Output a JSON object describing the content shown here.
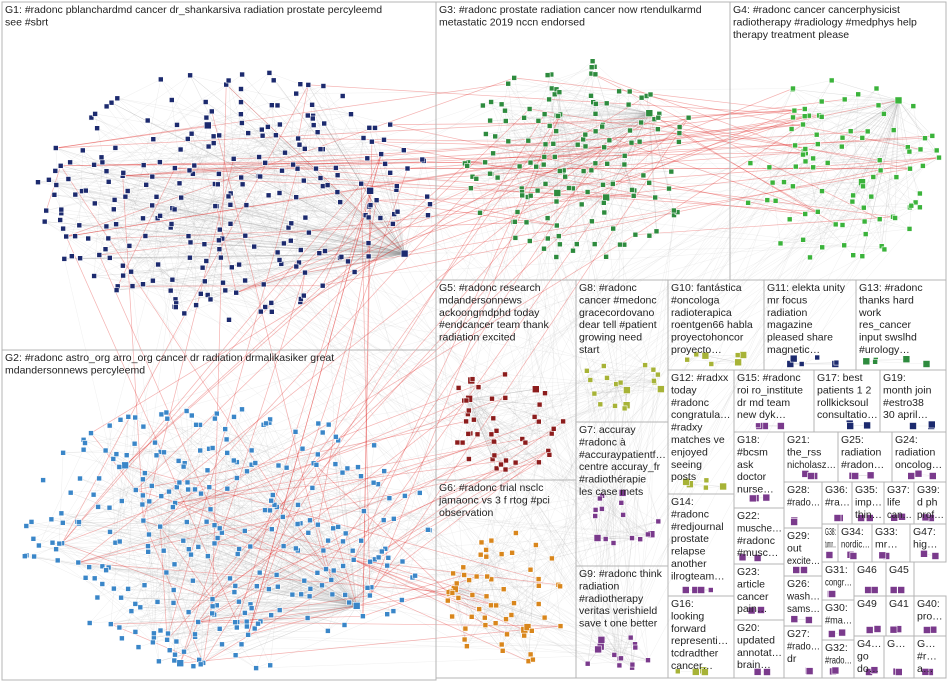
{
  "graph": {
    "colors": {
      "navy": "#1c2a6e",
      "green": "#2e8b3e",
      "lightgreen": "#3bb33b",
      "blue": "#3a86c8",
      "darkred": "#8c1c1c",
      "orange": "#d9861c",
      "olive": "#a7b337",
      "purple": "#7a3a8c",
      "edge": "#999999",
      "edge_red": "#e0201e"
    },
    "groups": [
      {
        "id": "G1",
        "label_lines": [
          "G1: #radonc pblanchardmd cancer dr_shankarsiva radiation prostate percyleemd",
          "see #sbrt"
        ],
        "color": "navy"
      },
      {
        "id": "G2",
        "label_lines": [
          "G2: #radonc astro_org arro_org cancer dr radiation drmalikasiker great",
          "mdandersonnews percyleemd"
        ],
        "color": "blue"
      },
      {
        "id": "G3",
        "label_lines": [
          "G3: #radonc prostate radiation cancer now rtendulkarmd",
          "metastatic 2019 nccn endorsed"
        ],
        "color": "green"
      },
      {
        "id": "G4",
        "label_lines": [
          "G4: #radonc cancer cancerphysicist",
          "radiotherapy #radiology #medphys help",
          "therapy treatment please"
        ],
        "color": "lightgreen"
      },
      {
        "id": "G5",
        "label_lines": [
          "G5: #radonc research",
          "mdandersonnews",
          "ackoongmdphd today",
          "#endcancer team thank",
          "radiation excited"
        ],
        "color": "darkred"
      },
      {
        "id": "G6",
        "label_lines": [
          "G6: #radonc trial nsclc",
          "jamaonc vs 3 f rtog #pci",
          "observation"
        ],
        "color": "orange"
      },
      {
        "id": "G7",
        "label_lines": [
          "G7: accuray",
          "#radonc à",
          "#accuraypatientf…",
          "centre accuray_fr",
          "#radiothérapie",
          "les case mets"
        ],
        "color": "purple"
      },
      {
        "id": "G8",
        "label_lines": [
          "G8: #radonc",
          "cancer #medonc",
          "gracecordovano",
          "dear tell #patient",
          "growing need",
          "start"
        ],
        "color": "olive"
      },
      {
        "id": "G9",
        "label_lines": [
          "G9: #radonc think",
          "radiation",
          "#radiotherapy",
          "veritas verishield",
          "save t one better"
        ],
        "color": "purple"
      },
      {
        "id": "G10",
        "label_lines": [
          "G10: fantástica",
          "#oncologa",
          "radioterapica",
          "roentgen66 habla",
          "proyectohoncor",
          "proyecto…"
        ],
        "color": "olive"
      },
      {
        "id": "G11",
        "label_lines": [
          "G11: elekta unity",
          "mr focus",
          "radiation",
          "magazine",
          "pleased share",
          "magnetic…"
        ],
        "color": "navy"
      },
      {
        "id": "G12",
        "label_lines": [
          "G12: #radxx",
          "today",
          "#radonc",
          "congratula…",
          "#radxy",
          "matches ve",
          "enjoyed",
          "seeing",
          "posts"
        ],
        "color": "olive"
      },
      {
        "id": "G13",
        "label_lines": [
          "G13: #radonc",
          "thanks hard",
          "work",
          "res_cancer",
          "input swslhd",
          "#urology…"
        ],
        "color": "green"
      },
      {
        "id": "G14",
        "label_lines": [
          "G14:",
          "#radonc",
          "#redjournal",
          "prostate",
          "relapse",
          "another",
          "ilrogteam…"
        ],
        "color": "purple"
      },
      {
        "id": "G15",
        "label_lines": [
          "G15: #radonc",
          "roi ro_institute",
          "dr md team",
          "new dyk…"
        ],
        "color": "purple"
      },
      {
        "id": "G16",
        "label_lines": [
          "G16:",
          "looking",
          "forward",
          "representi…",
          "tcdradther",
          "cancer…"
        ],
        "color": "olive"
      },
      {
        "id": "G17",
        "label_lines": [
          "G17: best",
          "patients 1 2",
          "rollkicksoul",
          "consultatio…"
        ],
        "color": "navy"
      },
      {
        "id": "G18",
        "label_lines": [
          "G18:",
          "#bcsm",
          "ask",
          "doctor",
          "nurse…"
        ],
        "color": "purple"
      },
      {
        "id": "G19",
        "label_lines": [
          "G19:",
          "month join",
          "#estro38",
          "30 april…"
        ],
        "color": "navy"
      },
      {
        "id": "G20",
        "label_lines": [
          "G20:",
          "updated",
          "annotat…",
          "brain…"
        ],
        "color": "purple"
      },
      {
        "id": "G21",
        "label_lines": [
          "G21:",
          "the_rss",
          "nicholasz…"
        ],
        "color": "purple"
      },
      {
        "id": "G22",
        "label_lines": [
          "G22:",
          "musche…",
          "#radonc",
          "#musc…"
        ],
        "color": "purple"
      },
      {
        "id": "G23",
        "label_lines": [
          "G23:",
          "article",
          "cancer",
          "pain…"
        ],
        "color": "purple"
      },
      {
        "id": "G24",
        "label_lines": [
          "G24:",
          "radiation",
          "oncolog…"
        ],
        "color": "purple"
      },
      {
        "id": "G25",
        "label_lines": [
          "G25:",
          "radiation",
          "#radon…"
        ],
        "color": "purple"
      },
      {
        "id": "G26",
        "label_lines": [
          "G26:",
          "wash…",
          "sams…"
        ],
        "color": "purple"
      },
      {
        "id": "G27",
        "label_lines": [
          "G27:",
          "#rado…",
          "dr"
        ],
        "color": "purple"
      },
      {
        "id": "G28",
        "label_lines": [
          "G28:",
          "#rado…"
        ],
        "color": "purple"
      },
      {
        "id": "G29",
        "label_lines": [
          "G29:",
          "out",
          "excite…"
        ],
        "color": "purple"
      },
      {
        "id": "G30",
        "label_lines": [
          "G30:",
          "#ma…"
        ],
        "color": "purple"
      },
      {
        "id": "G31",
        "label_lines": [
          "G31:",
          "congr…"
        ],
        "color": "purple"
      },
      {
        "id": "G32",
        "label_lines": [
          "G32:",
          "#rado…"
        ],
        "color": "purple"
      },
      {
        "id": "G33",
        "label_lines": [
          "G33:",
          "mr…"
        ],
        "color": "purple"
      },
      {
        "id": "G34",
        "label_lines": [
          "G34:",
          "nordic…"
        ],
        "color": "purple"
      },
      {
        "id": "G35",
        "label_lines": [
          "G35:",
          "imp…",
          "thin…"
        ],
        "color": "purple"
      },
      {
        "id": "G36",
        "label_lines": [
          "G36:",
          "#ra…"
        ],
        "color": "purple"
      },
      {
        "id": "G37",
        "label_lines": [
          "G37:",
          "life",
          "can…"
        ],
        "color": "purple"
      },
      {
        "id": "G38",
        "label_lines": [
          "G38:",
          "tumor…"
        ],
        "color": "purple"
      },
      {
        "id": "G39",
        "label_lines": [
          "G39:",
          "d ph",
          "prof…"
        ],
        "color": "purple"
      },
      {
        "id": "G40",
        "label_lines": [
          "G40:",
          "pro…"
        ],
        "color": "purple"
      },
      {
        "id": "G41",
        "label_lines": [
          "G41"
        ],
        "color": "purple"
      },
      {
        "id": "G42",
        "label_lines": [
          "G4…",
          "go",
          "do…"
        ],
        "color": "purple"
      },
      {
        "id": "G43",
        "label_lines": [
          "G…",
          "#r…",
          "a…"
        ],
        "color": "purple"
      },
      {
        "id": "G45",
        "label_lines": [
          "G45"
        ],
        "color": "purple"
      },
      {
        "id": "G46",
        "label_lines": [
          "G46"
        ],
        "color": "purple"
      },
      {
        "id": "G47",
        "label_lines": [
          "G47:",
          "hig…"
        ],
        "color": "purple"
      },
      {
        "id": "G49",
        "label_lines": [
          "G49"
        ],
        "color": "purple"
      },
      {
        "id": "G50",
        "label_lines": [
          "G…"
        ],
        "color": "purple"
      }
    ]
  }
}
